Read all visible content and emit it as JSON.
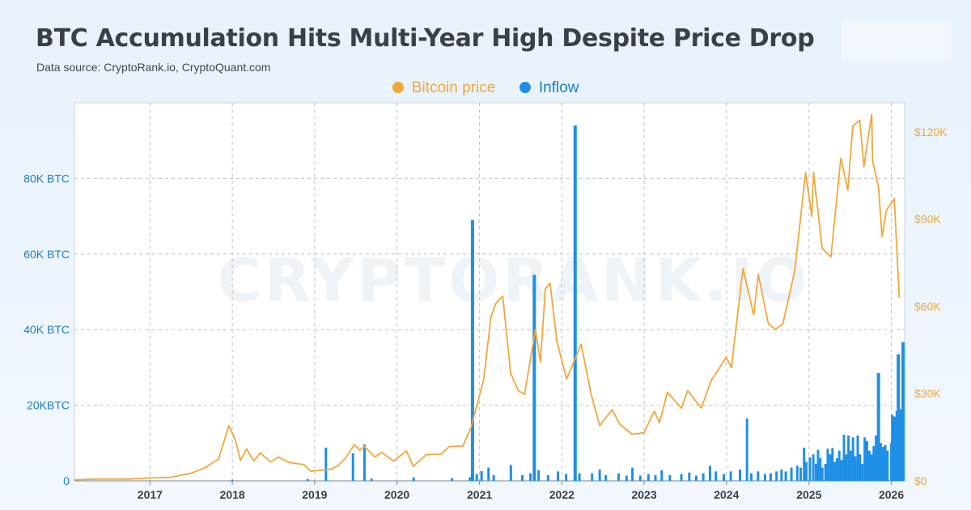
{
  "header": {
    "title": "BTC Accumulation Hits Multi-Year High Despite Price Drop",
    "subtitle": "Data source: CryptoRank.io, CryptoQuant.com"
  },
  "colors": {
    "price": "#f0a73c",
    "inflow": "#1f8fe6",
    "left_axis_text": "#1a7fc4",
    "right_axis_text": "#f0a73c",
    "x_axis_text": "#3a4048"
  },
  "watermark": "CRYPTORANK.IO",
  "chart_data": {
    "type": "bar+line",
    "legend": [
      {
        "name": "Bitcoin price",
        "color": "#f0a73c"
      },
      {
        "name": "Inflow",
        "color": "#1f8fe6"
      }
    ],
    "legend_placement": "top-center",
    "grid": true,
    "x_ticks": [
      "2017",
      "2018",
      "2019",
      "2020",
      "2021",
      "2022",
      "2023",
      "2024",
      "2025",
      "2026"
    ],
    "xlim": [
      "2016-02-01",
      "2026-03-01"
    ],
    "left_axis": {
      "ylim": [
        0,
        100000
      ],
      "ticks": [
        {
          "value": 0,
          "label": "0"
        },
        {
          "value": 20000,
          "label": "20KBTC"
        },
        {
          "value": 40000,
          "label": "40K BTC"
        },
        {
          "value": 60000,
          "label": "60K BTC"
        },
        {
          "value": 80000,
          "label": "80K BTC"
        }
      ]
    },
    "right_axis": {
      "ylim": [
        0,
        130000
      ],
      "ticks": [
        {
          "value": 0,
          "label": "$0"
        },
        {
          "value": 30000,
          "label": "$30K"
        },
        {
          "value": 60000,
          "label": "$60K"
        },
        {
          "value": 90000,
          "label": "$90K"
        },
        {
          "value": 120000,
          "label": "$120K"
        }
      ]
    },
    "series": [
      {
        "name": "Bitcoin price",
        "type": "line",
        "axis": "right",
        "points": [
          [
            "2016-02-01",
            400
          ],
          [
            "2016-06-01",
            650
          ],
          [
            "2016-10-01",
            620
          ],
          [
            "2017-01-01",
            1000
          ],
          [
            "2017-04-01",
            1200
          ],
          [
            "2017-07-01",
            2600
          ],
          [
            "2017-09-01",
            4500
          ],
          [
            "2017-11-01",
            7500
          ],
          [
            "2017-12-17",
            19000
          ],
          [
            "2018-01-15",
            14000
          ],
          [
            "2018-02-06",
            7000
          ],
          [
            "2018-03-05",
            11000
          ],
          [
            "2018-04-06",
            6800
          ],
          [
            "2018-05-05",
            9600
          ],
          [
            "2018-06-20",
            6500
          ],
          [
            "2018-07-25",
            8200
          ],
          [
            "2018-09-10",
            6300
          ],
          [
            "2018-11-15",
            5600
          ],
          [
            "2018-12-15",
            3300
          ],
          [
            "2019-01-20",
            3600
          ],
          [
            "2019-03-15",
            4000
          ],
          [
            "2019-04-15",
            5200
          ],
          [
            "2019-05-20",
            8000
          ],
          [
            "2019-06-26",
            12500
          ],
          [
            "2019-07-20",
            10500
          ],
          [
            "2019-08-10",
            11800
          ],
          [
            "2019-09-25",
            8200
          ],
          [
            "2019-10-26",
            9800
          ],
          [
            "2019-12-17",
            6800
          ],
          [
            "2020-02-12",
            10300
          ],
          [
            "2020-03-13",
            5000
          ],
          [
            "2020-05-10",
            9000
          ],
          [
            "2020-07-15",
            9200
          ],
          [
            "2020-08-20",
            11800
          ],
          [
            "2020-10-20",
            12000
          ],
          [
            "2020-11-25",
            18500
          ],
          [
            "2020-12-31",
            29000
          ],
          [
            "2021-01-20",
            35000
          ],
          [
            "2021-02-20",
            56000
          ],
          [
            "2021-03-14",
            61000
          ],
          [
            "2021-04-14",
            63500
          ],
          [
            "2021-05-19",
            37000
          ],
          [
            "2021-06-22",
            31000
          ],
          [
            "2021-07-20",
            29800
          ],
          [
            "2021-09-06",
            52000
          ],
          [
            "2021-09-28",
            41000
          ],
          [
            "2021-10-20",
            66000
          ],
          [
            "2021-11-10",
            68000
          ],
          [
            "2021-12-10",
            48000
          ],
          [
            "2022-01-22",
            35000
          ],
          [
            "2022-03-28",
            47000
          ],
          [
            "2022-05-10",
            30000
          ],
          [
            "2022-06-18",
            19000
          ],
          [
            "2022-08-12",
            24500
          ],
          [
            "2022-09-15",
            19500
          ],
          [
            "2022-11-09",
            16000
          ],
          [
            "2022-12-31",
            16500
          ],
          [
            "2023-02-15",
            24000
          ],
          [
            "2023-03-10",
            20000
          ],
          [
            "2023-04-14",
            30500
          ],
          [
            "2023-06-15",
            25000
          ],
          [
            "2023-07-13",
            31000
          ],
          [
            "2023-09-11",
            25000
          ],
          [
            "2023-10-25",
            34500
          ],
          [
            "2023-12-31",
            42500
          ],
          [
            "2024-01-23",
            39000
          ],
          [
            "2024-03-14",
            73000
          ],
          [
            "2024-05-01",
            57000
          ],
          [
            "2024-05-21",
            71000
          ],
          [
            "2024-07-05",
            54000
          ],
          [
            "2024-08-05",
            52000
          ],
          [
            "2024-09-07",
            54000
          ],
          [
            "2024-10-29",
            72000
          ],
          [
            "2024-12-17",
            106000
          ],
          [
            "2025-01-13",
            91000
          ],
          [
            "2025-01-21",
            106000
          ],
          [
            "2025-02-28",
            80000
          ],
          [
            "2025-04-08",
            77000
          ],
          [
            "2025-05-22",
            111000
          ],
          [
            "2025-06-22",
            100000
          ],
          [
            "2025-07-14",
            122000
          ],
          [
            "2025-08-14",
            124000
          ],
          [
            "2025-09-01",
            108000
          ],
          [
            "2025-10-06",
            126000
          ],
          [
            "2025-10-10",
            110000
          ],
          [
            "2025-11-05",
            101000
          ],
          [
            "2025-11-21",
            84000
          ],
          [
            "2025-12-10",
            93000
          ],
          [
            "2026-01-14",
            97000
          ],
          [
            "2026-02-05",
            63000
          ]
        ]
      },
      {
        "name": "Inflow",
        "type": "bar",
        "axis": "left",
        "points": [
          [
            "2018-01-01",
            300
          ],
          [
            "2018-12-01",
            500
          ],
          [
            "2019-02-20",
            8800
          ],
          [
            "2019-06-20",
            7300
          ],
          [
            "2019-08-10",
            9600
          ],
          [
            "2019-09-10",
            600
          ],
          [
            "2020-03-15",
            900
          ],
          [
            "2020-09-01",
            700
          ],
          [
            "2020-11-20",
            1000
          ],
          [
            "2020-12-01",
            69000
          ],
          [
            "2020-12-20",
            1800
          ],
          [
            "2021-01-10",
            2600
          ],
          [
            "2021-02-10",
            3500
          ],
          [
            "2021-03-05",
            1500
          ],
          [
            "2021-05-20",
            4200
          ],
          [
            "2021-07-10",
            1500
          ],
          [
            "2021-08-15",
            2000
          ],
          [
            "2021-09-01",
            54500
          ],
          [
            "2021-09-20",
            2800
          ],
          [
            "2021-11-01",
            1500
          ],
          [
            "2021-12-15",
            2500
          ],
          [
            "2022-01-20",
            1800
          ],
          [
            "2022-03-01",
            94000
          ],
          [
            "2022-03-20",
            2000
          ],
          [
            "2022-05-15",
            2000
          ],
          [
            "2022-06-18",
            3000
          ],
          [
            "2022-07-15",
            1500
          ],
          [
            "2022-09-10",
            2000
          ],
          [
            "2022-10-15",
            1400
          ],
          [
            "2022-11-10",
            3500
          ],
          [
            "2022-12-15",
            1400
          ],
          [
            "2023-01-20",
            1800
          ],
          [
            "2023-02-20",
            1500
          ],
          [
            "2023-03-20",
            2800
          ],
          [
            "2023-04-25",
            1500
          ],
          [
            "2023-06-15",
            1800
          ],
          [
            "2023-07-20",
            2200
          ],
          [
            "2023-08-20",
            1400
          ],
          [
            "2023-09-20",
            2000
          ],
          [
            "2023-10-20",
            4000
          ],
          [
            "2023-11-15",
            2500
          ],
          [
            "2023-12-20",
            1800
          ],
          [
            "2024-01-20",
            2500
          ],
          [
            "2024-03-01",
            3000
          ],
          [
            "2024-04-01",
            16500
          ],
          [
            "2024-04-20",
            2000
          ],
          [
            "2024-05-20",
            2500
          ],
          [
            "2024-06-20",
            1800
          ],
          [
            "2024-07-15",
            2000
          ],
          [
            "2024-08-10",
            2500
          ],
          [
            "2024-09-01",
            3000
          ],
          [
            "2024-09-20",
            2500
          ],
          [
            "2024-10-15",
            3500
          ],
          [
            "2024-11-10",
            4000
          ],
          [
            "2024-11-25",
            3500
          ],
          [
            "2024-12-10",
            8800
          ],
          [
            "2024-12-20",
            5000
          ],
          [
            "2025-01-05",
            6200
          ],
          [
            "2025-01-20",
            7000
          ],
          [
            "2025-02-01",
            4500
          ],
          [
            "2025-02-10",
            8200
          ],
          [
            "2025-02-20",
            6000
          ],
          [
            "2025-03-01",
            3500
          ],
          [
            "2025-03-15",
            4500
          ],
          [
            "2025-03-25",
            8500
          ],
          [
            "2025-04-05",
            7000
          ],
          [
            "2025-04-15",
            8700
          ],
          [
            "2025-04-25",
            5000
          ],
          [
            "2025-05-05",
            6000
          ],
          [
            "2025-05-15",
            8000
          ],
          [
            "2025-05-25",
            5500
          ],
          [
            "2025-06-05",
            12200
          ],
          [
            "2025-06-15",
            7000
          ],
          [
            "2025-06-25",
            12000
          ],
          [
            "2025-07-05",
            8000
          ],
          [
            "2025-07-15",
            11500
          ],
          [
            "2025-07-25",
            6500
          ],
          [
            "2025-08-05",
            12000
          ],
          [
            "2025-08-15",
            7000
          ],
          [
            "2025-08-25",
            4500
          ],
          [
            "2025-09-05",
            11500
          ],
          [
            "2025-09-15",
            10500
          ],
          [
            "2025-09-25",
            8000
          ],
          [
            "2025-10-05",
            7000
          ],
          [
            "2025-10-15",
            9200
          ],
          [
            "2025-10-25",
            12000
          ],
          [
            "2025-11-05",
            28500
          ],
          [
            "2025-11-15",
            10000
          ],
          [
            "2025-11-25",
            9000
          ],
          [
            "2025-12-05",
            9500
          ],
          [
            "2025-12-15",
            8000
          ],
          [
            "2026-01-01",
            10000
          ],
          [
            "2026-01-05",
            17500
          ],
          [
            "2026-01-15",
            17000
          ],
          [
            "2026-01-25",
            18500
          ],
          [
            "2026-02-01",
            33500
          ],
          [
            "2026-02-10",
            19000
          ],
          [
            "2026-02-15",
            18000
          ],
          [
            "2026-02-22",
            36700
          ]
        ]
      }
    ]
  }
}
